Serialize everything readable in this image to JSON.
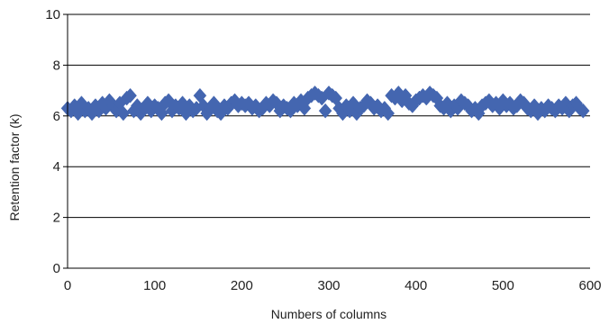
{
  "chart_data": {
    "type": "scatter",
    "title": "",
    "xlabel": "Numbers of columns",
    "ylabel": "Retention factor (k)",
    "xlim": [
      0,
      600
    ],
    "ylim": [
      0,
      10
    ],
    "xticks": [
      "0",
      "100",
      "200",
      "300",
      "400",
      "500",
      "600"
    ],
    "yticks": [
      "0",
      "2",
      "4",
      "6",
      "8",
      "10"
    ],
    "grid": "horizontal",
    "legend": "none",
    "marker": "diamond",
    "color": "#4466b0",
    "series": [
      {
        "x": [
          0,
          4,
          8,
          12,
          16,
          20,
          24,
          28,
          32,
          36,
          40,
          44,
          48,
          52,
          56,
          60,
          64,
          68,
          72,
          76,
          80,
          84,
          88,
          92,
          96,
          100,
          104,
          108,
          112,
          116,
          120,
          124,
          128,
          132,
          136,
          140,
          144,
          148,
          152,
          156,
          160,
          164,
          168,
          172,
          176,
          180,
          184,
          188,
          192,
          196,
          200,
          204,
          208,
          212,
          216,
          220,
          224,
          228,
          232,
          236,
          240,
          244,
          248,
          252,
          256,
          260,
          264,
          268,
          272,
          276,
          280,
          284,
          288,
          292,
          296,
          300,
          304,
          308,
          312,
          316,
          320,
          324,
          328,
          332,
          336,
          340,
          344,
          348,
          352,
          356,
          360,
          364,
          368,
          372,
          376,
          380,
          384,
          388,
          392,
          396,
          400,
          404,
          408,
          412,
          416,
          420,
          424,
          428,
          432,
          436,
          440,
          444,
          448,
          452,
          456,
          460,
          464,
          468,
          472,
          476,
          480,
          484,
          488,
          492,
          496,
          500,
          504,
          508,
          512,
          516,
          520,
          524,
          528,
          532,
          536,
          540,
          544,
          548,
          552,
          556,
          560,
          564,
          568,
          572,
          576,
          580,
          584,
          588,
          592
        ],
        "y": [
          6.3,
          6.2,
          6.4,
          6.1,
          6.5,
          6.2,
          6.3,
          6.1,
          6.4,
          6.2,
          6.5,
          6.3,
          6.6,
          6.4,
          6.2,
          6.5,
          6.1,
          6.7,
          6.8,
          6.2,
          6.4,
          6.1,
          6.3,
          6.5,
          6.2,
          6.4,
          6.3,
          6.1,
          6.5,
          6.6,
          6.2,
          6.4,
          6.3,
          6.5,
          6.1,
          6.4,
          6.2,
          6.3,
          6.8,
          6.4,
          6.1,
          6.3,
          6.5,
          6.2,
          6.1,
          6.4,
          6.3,
          6.5,
          6.6,
          6.4,
          6.5,
          6.4,
          6.5,
          6.3,
          6.4,
          6.2,
          6.3,
          6.5,
          6.4,
          6.6,
          6.5,
          6.2,
          6.4,
          6.3,
          6.2,
          6.5,
          6.4,
          6.6,
          6.3,
          6.7,
          6.8,
          6.9,
          6.8,
          6.7,
          6.2,
          6.9,
          6.8,
          6.7,
          6.3,
          6.1,
          6.4,
          6.2,
          6.5,
          6.1,
          6.3,
          6.4,
          6.6,
          6.5,
          6.3,
          6.4,
          6.2,
          6.3,
          6.1,
          6.8,
          6.7,
          6.9,
          6.6,
          6.8,
          6.5,
          6.4,
          6.6,
          6.7,
          6.8,
          6.7,
          6.9,
          6.8,
          6.7,
          6.4,
          6.3,
          6.5,
          6.2,
          6.4,
          6.3,
          6.6,
          6.5,
          6.4,
          6.2,
          6.3,
          6.1,
          6.4,
          6.5,
          6.6,
          6.4,
          6.5,
          6.3,
          6.6,
          6.4,
          6.5,
          6.3,
          6.4,
          6.6,
          6.5,
          6.3,
          6.2,
          6.4,
          6.1,
          6.3,
          6.2,
          6.4,
          6.3,
          6.2,
          6.4,
          6.3,
          6.5,
          6.2,
          6.4,
          6.5,
          6.3,
          6.2
        ]
      }
    ]
  }
}
